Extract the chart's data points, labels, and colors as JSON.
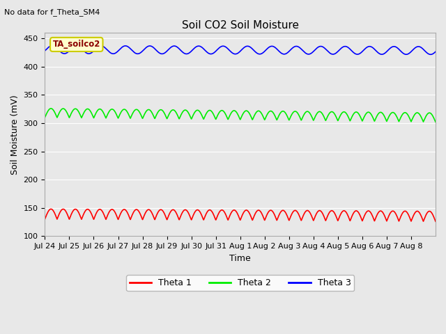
{
  "title": "Soil CO2 Soil Moisture",
  "no_data_text": "No data for f_Theta_SM4",
  "annotation_text": "TA_soilco2",
  "xlabel": "Time",
  "ylabel": "Soil Moisture (mV)",
  "ylim": [
    100,
    460
  ],
  "yticks": [
    100,
    150,
    200,
    250,
    300,
    350,
    400,
    450
  ],
  "x_labels": [
    "Jul 24",
    "Jul 25",
    "Jul 26",
    "Jul 27",
    "Jul 28",
    "Jul 29",
    "Jul 30",
    "Jul 31",
    "Aug 1",
    "Aug 2",
    "Aug 3",
    "Aug 4",
    "Aug 5",
    "Aug 6",
    "Aug 7",
    "Aug 8"
  ],
  "n_days": 16,
  "theta1_base": 130,
  "theta1_amp": 18,
  "theta1_freq": 2.0,
  "theta1_trend": -0.25,
  "theta2_base": 310,
  "theta2_amp": 16,
  "theta2_freq": 2.0,
  "theta2_trend": -0.5,
  "theta3_base": 430,
  "theta3_amp": 7,
  "theta3_freq": 1.0,
  "theta3_trend": -0.1,
  "color_theta1": "#ff0000",
  "color_theta2": "#00ee00",
  "color_theta3": "#0000ff",
  "bg_color": "#e8e8e8",
  "fig_bg_color": "#e8e8e8",
  "grid_color": "#ffffff",
  "legend_labels": [
    "Theta 1",
    "Theta 2",
    "Theta 3"
  ],
  "annotation_facecolor": "#ffffcc",
  "annotation_edgecolor": "#cccc00",
  "annotation_textcolor": "#8B0000",
  "linewidth": 1.2
}
